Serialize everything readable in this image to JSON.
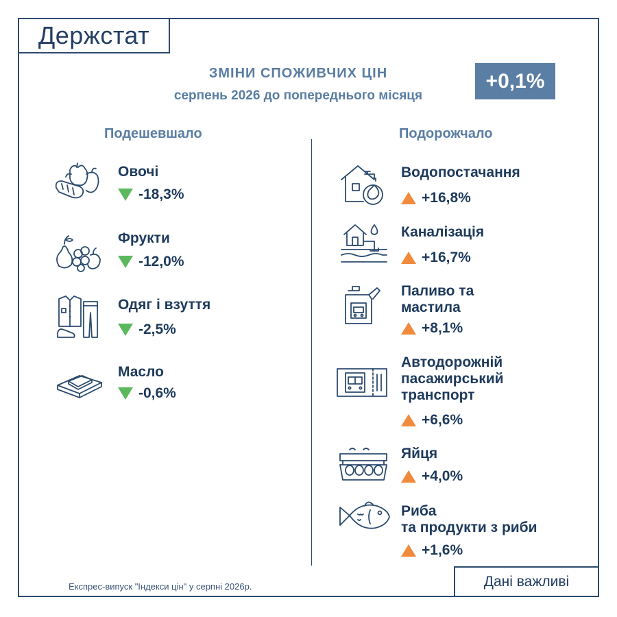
{
  "logo": {
    "text": "Держстат"
  },
  "header": {
    "title": "ЗМІНИ СПОЖИВЧИХ ЦІН",
    "subtitle": "серпень 2026 до попереднього місяця",
    "total": "+0,1%"
  },
  "columns": {
    "decreased_label": "Подешевшало",
    "increased_label": "Подорожчало"
  },
  "decreased": [
    {
      "name": "Овочі",
      "value": "-18,3%",
      "icon": "vegetables-icon"
    },
    {
      "name": "Фрукти",
      "value": "-12,0%",
      "icon": "fruits-icon"
    },
    {
      "name": "Одяг і взуття",
      "value": "-2,5%",
      "icon": "clothing-icon"
    },
    {
      "name": "Масло",
      "value": "-0,6%",
      "icon": "butter-icon"
    }
  ],
  "increased": [
    {
      "name": "Водопостачання",
      "value": "+16,8%",
      "icon": "water-supply-icon"
    },
    {
      "name": "Каналізація",
      "value": "+16,7%",
      "icon": "sewerage-icon"
    },
    {
      "name_line1": "Паливо та",
      "name_line2": "мастила",
      "value": "+8,1%",
      "icon": "fuel-icon"
    },
    {
      "name_line1": "Автодорожній",
      "name_line2": "пасажирський",
      "name_line3": "транспорт",
      "value": "+6,6%",
      "icon": "bus-ticket-icon"
    },
    {
      "name": "Яйця",
      "value": "+4,0%",
      "icon": "eggs-icon"
    },
    {
      "name_line1": "Риба",
      "name_line2": "та продукти з риби",
      "value": "+1,6%",
      "icon": "fish-icon"
    }
  ],
  "colors": {
    "navy": "#1e3a5c",
    "accent_blue": "#5b7ea4",
    "down_green": "#5cb85c",
    "up_orange": "#f08a3c"
  },
  "footer": {
    "note": "Експрес-випуск \"Індекси цін\" у серпні 2026р.",
    "important": "Дані важливі"
  }
}
